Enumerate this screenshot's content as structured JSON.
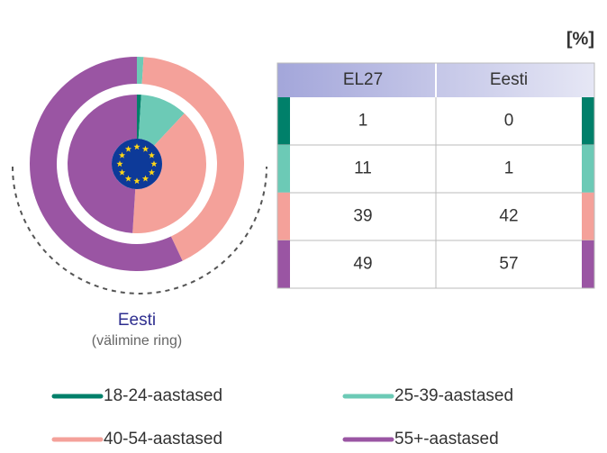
{
  "chart_data": {
    "type": "donut",
    "unit": "[%]",
    "categories": [
      "18-24-aastased",
      "25-39-aastased",
      "40-54-aastased",
      "55+-aastased"
    ],
    "colors": [
      "#00806a",
      "#6ccab6",
      "#f4a19a",
      "#9a55a3"
    ],
    "series": [
      {
        "name": "EL27",
        "values": [
          1,
          11,
          39,
          49
        ]
      },
      {
        "name": "Eesti",
        "values": [
          0,
          1,
          42,
          57
        ]
      }
    ],
    "caption": "Eesti",
    "caption_note": "(välimine ring)"
  }
}
